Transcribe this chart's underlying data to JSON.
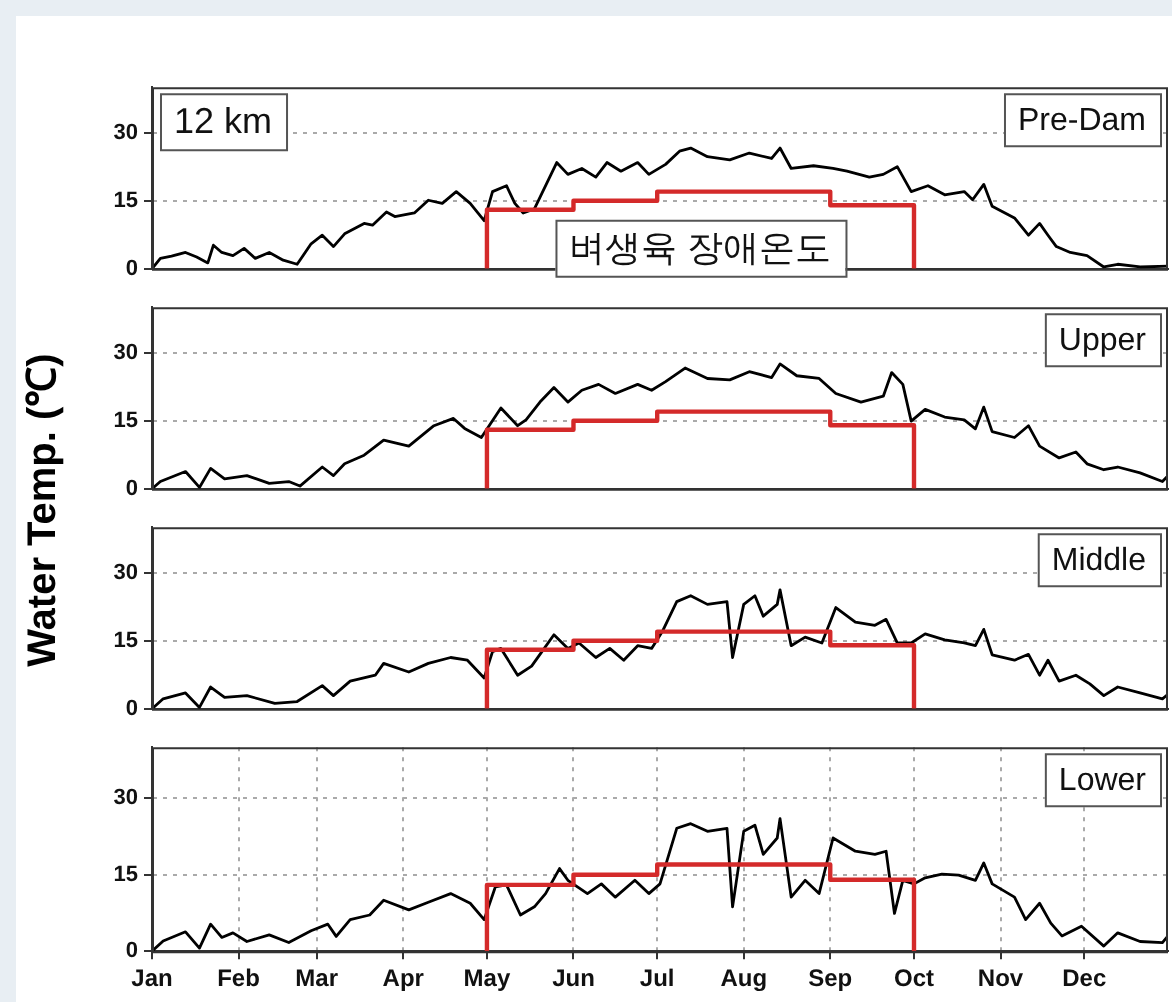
{
  "chart_data": [
    {
      "type": "line",
      "title": "Pre-Dam",
      "ylabel": "Water Temp. (℃)",
      "annotations": [
        "12 km"
      ],
      "xlim": [
        "--01-01",
        "--12-31"
      ],
      "ylim": [
        0,
        40
      ],
      "yticks": [
        0,
        15,
        30
      ],
      "xticks": [
        {
          "value": "--01-01",
          "label": null
        },
        {
          "value": "--02-01",
          "label": null
        },
        {
          "value": "--03-01",
          "label": null
        },
        {
          "value": "--04-01",
          "label": null
        },
        {
          "value": "--05-01",
          "label": null
        },
        {
          "value": "--06-01",
          "label": null
        },
        {
          "value": "--07-01",
          "label": null
        },
        {
          "value": "--08-01",
          "label": null
        },
        {
          "value": "--09-01",
          "label": null
        },
        {
          "value": "--10-01",
          "label": null
        },
        {
          "value": "--11-01",
          "label": null
        },
        {
          "value": "--12-01",
          "label": null
        }
      ],
      "tick_labels": "y",
      "grid": true,
      "legend": false,
      "marker": "none",
      "series": [
        {
          "color": "#000000",
          "x": [
            "--01-01",
            "--01-04",
            "--01-08",
            "--01-13",
            "--01-17",
            "--01-21",
            "--01-23",
            "--01-26",
            "--01-30",
            "--02-03",
            "--02-07",
            "--02-12",
            "--02-17",
            "--02-22",
            "--02-27",
            "--03-03",
            "--03-07",
            "--03-11",
            "--03-18",
            "--03-21",
            "--03-26",
            "--03-29",
            "--04-05",
            "--04-10",
            "--04-15",
            "--04-20",
            "--04-25",
            "--04-30",
            "--05-03",
            "--05-08",
            "--05-11",
            "--05-14",
            "--05-18",
            "--05-26",
            "--05-30",
            "--06-04",
            "--06-09",
            "--06-13",
            "--06-18",
            "--06-24",
            "--06-28",
            "--07-04",
            "--07-09",
            "--07-13",
            "--07-19",
            "--07-27",
            "--08-03",
            "--08-11",
            "--08-14",
            "--08-18",
            "--08-26",
            "--09-02",
            "--09-07",
            "--09-15",
            "--09-20",
            "--09-25",
            "--09-30",
            "--10-06",
            "--10-12",
            "--10-19",
            "--10-22",
            "--10-26",
            "--10-29",
            "--11-06",
            "--11-11",
            "--11-15",
            "--11-18",
            "--11-21",
            "--11-26",
            "--12-02",
            "--12-08",
            "--12-13",
            "--12-21",
            "--12-31"
          ],
          "values": [
            0,
            2.3,
            2.8,
            3.6,
            2.6,
            1.3,
            5.2,
            3.6,
            2.9,
            4.5,
            2.3,
            3.6,
            1.9,
            1.0,
            5.5,
            7.4,
            4.9,
            7.7,
            10,
            9.6,
            12.5,
            11.5,
            12.3,
            15.1,
            14.4,
            17,
            14.4,
            10.6,
            17,
            18.3,
            14.4,
            12.3,
            13.2,
            23.4,
            20.8,
            22.1,
            20.2,
            23.4,
            21.5,
            23.4,
            20.8,
            23,
            25.9,
            26.6,
            24.7,
            24,
            25.5,
            24.3,
            26.6,
            22.1,
            22.7,
            22.1,
            21.5,
            20.2,
            20.8,
            22.5,
            17,
            18.3,
            16.3,
            17,
            15.2,
            18.6,
            13.8,
            11.2,
            7.4,
            10,
            7.4,
            4.9,
            3.6,
            2.9,
            0.4,
            1.0,
            0.4,
            0.6
          ]
        },
        {
          "type": "step",
          "name": "벼생육 장애온도",
          "color": "#d42a2a",
          "x": [
            "--05-01",
            "--05-01",
            "--06-01",
            "--07-01",
            "--09-01",
            "--10-01"
          ],
          "values": [
            0,
            13,
            15,
            17,
            14,
            0
          ]
        }
      ]
    },
    {
      "type": "line",
      "title": "Upper",
      "xlim": [
        "--01-01",
        "--12-31"
      ],
      "ylim": [
        0,
        40
      ],
      "yticks": [
        0,
        15,
        30
      ],
      "xticks": [
        {
          "value": "--01-01",
          "label": null
        },
        {
          "value": "--02-01",
          "label": null
        },
        {
          "value": "--03-01",
          "label": null
        },
        {
          "value": "--04-01",
          "label": null
        },
        {
          "value": "--05-01",
          "label": null
        },
        {
          "value": "--06-01",
          "label": null
        },
        {
          "value": "--07-01",
          "label": null
        },
        {
          "value": "--08-01",
          "label": null
        },
        {
          "value": "--09-01",
          "label": null
        },
        {
          "value": "--10-01",
          "label": null
        },
        {
          "value": "--11-01",
          "label": null
        },
        {
          "value": "--12-01",
          "label": null
        }
      ],
      "tick_labels": "y",
      "grid": true,
      "legend": false,
      "marker": "none",
      "series": [
        {
          "color": "#000000",
          "x": [
            "--01-01",
            "--01-04",
            "--01-13",
            "--01-18",
            "--01-22",
            "--01-27",
            "--02-04",
            "--02-12",
            "--02-19",
            "--02-23",
            "--03-03",
            "--03-07",
            "--03-11",
            "--03-18",
            "--03-25",
            "--04-03",
            "--04-12",
            "--04-19",
            "--04-23",
            "--04-29",
            "--05-06",
            "--05-12",
            "--05-15",
            "--05-20",
            "--05-25",
            "--05-30",
            "--06-04",
            "--06-10",
            "--06-16",
            "--06-24",
            "--06-29",
            "--07-04",
            "--07-11",
            "--07-19",
            "--07-27",
            "--08-03",
            "--08-11",
            "--08-14",
            "--08-20",
            "--08-28",
            "--09-03",
            "--09-12",
            "--09-20",
            "--09-23",
            "--09-27",
            "--09-30",
            "--10-05",
            "--10-12",
            "--10-19",
            "--10-23",
            "--10-26",
            "--10-29",
            "--11-06",
            "--11-11",
            "--11-15",
            "--11-22",
            "--11-28",
            "--12-02",
            "--12-08",
            "--12-13",
            "--12-21",
            "--12-29",
            "--12-31"
          ],
          "values": [
            0,
            1.6,
            3.8,
            0.3,
            4.5,
            2.2,
            2.9,
            1.2,
            1.6,
            0.6,
            4.8,
            2.9,
            5.5,
            7.4,
            10.7,
            9.4,
            13.9,
            15.5,
            13.3,
            11.3,
            17.8,
            13.9,
            15.2,
            19.1,
            22.3,
            19.1,
            21.7,
            23,
            21,
            23,
            21.7,
            23.6,
            26.6,
            24.3,
            24,
            25.8,
            24.5,
            27.5,
            24.9,
            24.3,
            21,
            19.1,
            20.4,
            25.6,
            23,
            14.9,
            17.5,
            15.8,
            15.2,
            13.2,
            18,
            12.6,
            11.3,
            13.9,
            9.4,
            6.8,
            8.1,
            5.5,
            4.2,
            4.8,
            3.5,
            1.6,
            2.9
          ]
        },
        {
          "type": "step",
          "color": "#d42a2a",
          "x": [
            "--05-01",
            "--05-01",
            "--06-01",
            "--07-01",
            "--09-01",
            "--10-01"
          ],
          "values": [
            0,
            13,
            15,
            17,
            14,
            0
          ]
        }
      ]
    },
    {
      "type": "line",
      "title": "Middle",
      "xlim": [
        "--01-01",
        "--12-31"
      ],
      "ylim": [
        0,
        40
      ],
      "yticks": [
        0,
        15,
        30
      ],
      "xticks": [
        {
          "value": "--01-01",
          "label": null
        },
        {
          "value": "--02-01",
          "label": null
        },
        {
          "value": "--03-01",
          "label": null
        },
        {
          "value": "--04-01",
          "label": null
        },
        {
          "value": "--05-01",
          "label": null
        },
        {
          "value": "--06-01",
          "label": null
        },
        {
          "value": "--07-01",
          "label": null
        },
        {
          "value": "--08-01",
          "label": null
        },
        {
          "value": "--09-01",
          "label": null
        },
        {
          "value": "--10-01",
          "label": null
        },
        {
          "value": "--11-01",
          "label": null
        },
        {
          "value": "--12-01",
          "label": null
        }
      ],
      "tick_labels": "y",
      "grid": true,
      "legend": false,
      "marker": "none",
      "series": [
        {
          "color": "#000000",
          "x": [
            "--01-01",
            "--01-05",
            "--01-13",
            "--01-18",
            "--01-22",
            "--01-27",
            "--02-04",
            "--02-14",
            "--02-22",
            "--03-03",
            "--03-07",
            "--03-13",
            "--03-22",
            "--03-25",
            "--04-03",
            "--04-10",
            "--04-18",
            "--04-24",
            "--04-30",
            "--05-03",
            "--05-06",
            "--05-12",
            "--05-17",
            "--05-20",
            "--05-25",
            "--05-30",
            "--06-03",
            "--06-09",
            "--06-14",
            "--06-19",
            "--06-24",
            "--06-29",
            "--07-03",
            "--07-08",
            "--07-13",
            "--07-19",
            "--07-26",
            "--07-28",
            "--08-01",
            "--08-05",
            "--08-08",
            "--08-13",
            "--08-14",
            "--08-18",
            "--08-23",
            "--08-29",
            "--09-03",
            "--09-10",
            "--09-17",
            "--09-21",
            "--09-25",
            "--09-30",
            "--10-05",
            "--10-12",
            "--10-19",
            "--10-23",
            "--10-26",
            "--10-29",
            "--11-06",
            "--11-11",
            "--11-15",
            "--11-18",
            "--11-22",
            "--11-28",
            "--12-03",
            "--12-08",
            "--12-13",
            "--12-21",
            "--12-29",
            "--12-31"
          ],
          "values": [
            0,
            2.2,
            3.5,
            0.3,
            4.8,
            2.5,
            2.9,
            1.2,
            1.6,
            5.1,
            2.9,
            6.1,
            7.4,
            10,
            8.1,
            10,
            11.3,
            10.7,
            6.8,
            12.6,
            13.3,
            7.4,
            9.4,
            12,
            16.3,
            13.3,
            14.5,
            11.3,
            13.3,
            10.7,
            13.9,
            13.3,
            17.2,
            23.6,
            24.9,
            23,
            23.6,
            11.3,
            23,
            24.9,
            20.4,
            23,
            26.2,
            13.9,
            15.8,
            14.5,
            22.3,
            19.1,
            18.4,
            19.7,
            14.5,
            14.5,
            16.5,
            15.2,
            14.5,
            13.9,
            17.5,
            11.9,
            10.7,
            12,
            7.4,
            10.7,
            6.1,
            7.4,
            5.5,
            2.9,
            4.8,
            3.5,
            2.2,
            3.2
          ]
        },
        {
          "type": "step",
          "color": "#d42a2a",
          "x": [
            "--05-01",
            "--05-01",
            "--06-01",
            "--07-01",
            "--09-01",
            "--10-01"
          ],
          "values": [
            0,
            13,
            15,
            17,
            14,
            0
          ]
        }
      ]
    },
    {
      "type": "line",
      "title": "Lower",
      "xlim": [
        "--01-01",
        "--12-31"
      ],
      "ylim": [
        0,
        40
      ],
      "yticks": [
        0,
        15,
        30
      ],
      "xticks": [
        {
          "value": "--01-01",
          "label": "Jan"
        },
        {
          "value": "--02-01",
          "label": "Feb"
        },
        {
          "value": "--03-01",
          "label": "Mar"
        },
        {
          "value": "--04-01",
          "label": "Apr"
        },
        {
          "value": "--05-01",
          "label": "May"
        },
        {
          "value": "--06-01",
          "label": "Jun"
        },
        {
          "value": "--07-01",
          "label": "Jul"
        },
        {
          "value": "--08-01",
          "label": "Aug"
        },
        {
          "value": "--09-01",
          "label": "Sep"
        },
        {
          "value": "--10-01",
          "label": "Oct"
        },
        {
          "value": "--11-01",
          "label": "Nov"
        },
        {
          "value": "--12-01",
          "label": "Dec"
        }
      ],
      "grid": true,
      "legend": false,
      "marker": "none",
      "series": [
        {
          "color": "#000000",
          "x": [
            "--01-01",
            "--01-05",
            "--01-13",
            "--01-18",
            "--01-22",
            "--01-26",
            "--01-30",
            "--02-04",
            "--02-12",
            "--02-19",
            "--02-27",
            "--03-05",
            "--03-08",
            "--03-13",
            "--03-20",
            "--03-25",
            "--04-03",
            "--04-10",
            "--04-18",
            "--04-25",
            "--04-30",
            "--05-04",
            "--05-08",
            "--05-13",
            "--05-18",
            "--05-22",
            "--05-27",
            "--05-30",
            "--06-06",
            "--06-11",
            "--06-16",
            "--06-23",
            "--06-28",
            "--07-02",
            "--07-08",
            "--07-13",
            "--07-19",
            "--07-26",
            "--07-28",
            "--08-01",
            "--08-05",
            "--08-08",
            "--08-13",
            "--08-14",
            "--08-18",
            "--08-23",
            "--08-28",
            "--09-02",
            "--09-10",
            "--09-17",
            "--09-21",
            "--09-24",
            "--09-27",
            "--10-01",
            "--10-05",
            "--10-11",
            "--10-17",
            "--10-23",
            "--10-26",
            "--10-29",
            "--11-06",
            "--11-10",
            "--11-15",
            "--11-19",
            "--11-23",
            "--11-30",
            "--12-08",
            "--12-13",
            "--12-21",
            "--12-29",
            "--12-31"
          ],
          "values": [
            0,
            2,
            3.8,
            0.6,
            5.3,
            2.7,
            3.6,
            1.9,
            3.2,
            1.7,
            4,
            5.3,
            2.9,
            6.2,
            7.1,
            10,
            8.1,
            9.6,
            11.3,
            9.4,
            6.2,
            12.6,
            13,
            7.1,
            8.7,
            11.3,
            16.2,
            13.9,
            11.3,
            13.2,
            10.6,
            13.9,
            11.3,
            13.2,
            24.1,
            25,
            23.5,
            24.1,
            8.7,
            23.5,
            24.7,
            19,
            22.2,
            26,
            10.6,
            13.9,
            11.3,
            22.2,
            19.6,
            19,
            19.6,
            7.4,
            13.9,
            13.2,
            14.4,
            15.1,
            14.9,
            13.9,
            17.3,
            13.2,
            10.6,
            6.2,
            9.4,
            5.5,
            3,
            4.9,
            1,
            3.6,
            1.9,
            1.7,
            3
          ]
        },
        {
          "type": "step",
          "color": "#d42a2a",
          "x": [
            "--05-01",
            "--05-01",
            "--06-01",
            "--07-01",
            "--09-01",
            "--10-01"
          ],
          "values": [
            0,
            13,
            15,
            17,
            14,
            0
          ]
        }
      ]
    }
  ]
}
